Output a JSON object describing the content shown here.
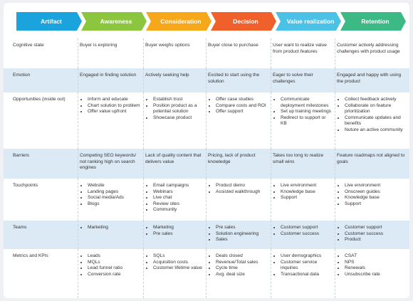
{
  "stages": [
    {
      "label": "Artifact",
      "color": "#1aa3dd"
    },
    {
      "label": "Awareness",
      "color": "#8cc63f"
    },
    {
      "label": "Consideration",
      "color": "#f6a81a"
    },
    {
      "label": "Decision",
      "color": "#f0602a"
    },
    {
      "label": "Value realization",
      "color": "#4cc1e6"
    },
    {
      "label": "Retention",
      "color": "#3db985"
    }
  ],
  "rows": [
    {
      "label": "Cognitive state",
      "shaded": false,
      "cells": [
        {
          "text": "Buyer is exploring"
        },
        {
          "text": "Buyer weighs options"
        },
        {
          "text": "Buyer close to purchase"
        },
        {
          "text": "User want to realize value from product features"
        },
        {
          "text": "Customer actively addressing challenges with product usage"
        }
      ]
    },
    {
      "label": "Emotion",
      "shaded": true,
      "cells": [
        {
          "text": "Engaged in finding solution"
        },
        {
          "text": "Actively seeking help"
        },
        {
          "text": "Excited to start using the solution"
        },
        {
          "text": "Eager to solve their challenges"
        },
        {
          "text": "Engaged and happy with using the product"
        }
      ]
    },
    {
      "label": "Opportunities (inside out)",
      "shaded": false,
      "cells": [
        {
          "items": [
            "Inform and educate",
            "Chart solution to problem",
            "Offer value upfront"
          ]
        },
        {
          "items": [
            "Establish trust",
            "Position product as a potential solution",
            "Showcase product"
          ]
        },
        {
          "items": [
            "Offer case studies",
            "Compare costs and ROI",
            "Offer support"
          ]
        },
        {
          "items": [
            "Communicate deployment milestones",
            "Set up training meetings",
            "Redirect to support or KB"
          ]
        },
        {
          "items": [
            "Collect feedback actively",
            "Collaborate on feature prioritization",
            "Communicate updates and benefits",
            "Nuture an active community"
          ]
        }
      ]
    },
    {
      "label": "Barriers",
      "shaded": true,
      "cells": [
        {
          "text": "Competing SEO keywords/ not ranking high on search engines"
        },
        {
          "text": "Lack of quality content that delivers value"
        },
        {
          "text": "Pricing, lack of product knowledge"
        },
        {
          "text": "Takes too long to realize small wins"
        },
        {
          "text": "Feature roadmaps not aligned to goals"
        }
      ]
    },
    {
      "label": "Touchpoints",
      "shaded": false,
      "cells": [
        {
          "items": [
            "Website",
            "Landing pages",
            "Social media/Ads",
            "Blogs"
          ]
        },
        {
          "items": [
            "Email campaigns",
            "Webinars",
            "Live chat",
            "Review sites",
            "Community"
          ]
        },
        {
          "items": [
            "Product demo",
            "Assisted walkthrough"
          ]
        },
        {
          "items": [
            "Live environment",
            "Knowledge base",
            "Support"
          ]
        },
        {
          "items": [
            "Live environment",
            "Onscreen guides",
            "Knowledge base",
            "Support"
          ]
        }
      ]
    },
    {
      "label": "Teams",
      "shaded": true,
      "cells": [
        {
          "items": [
            "Marketing"
          ]
        },
        {
          "items": [
            "Marketing",
            "Pre sales"
          ]
        },
        {
          "items": [
            "Pre sales",
            "Solution engineering",
            "Sales"
          ]
        },
        {
          "items": [
            "Customer support",
            "Customer success"
          ]
        },
        {
          "items": [
            "Customer support",
            "Customer success",
            "Product"
          ]
        }
      ]
    },
    {
      "label": "Metrics and KPIs",
      "shaded": false,
      "cells": [
        {
          "items": [
            "Leads",
            "MQLs",
            "Lead funnel ratio",
            "Conversion rate"
          ]
        },
        {
          "items": [
            "SQLs",
            "Acquisition costs",
            "Customer lifetime value"
          ]
        },
        {
          "items": [
            "Deals closed",
            "Revenue/Total sales",
            "Cycle time",
            "Avg. deal size"
          ]
        },
        {
          "items": [
            "User demographics",
            "Customer service inquiries",
            "Transactional data"
          ]
        },
        {
          "items": [
            "CSAT",
            "NPS",
            "Renewals",
            "Unsubscribe rate"
          ]
        }
      ]
    }
  ]
}
